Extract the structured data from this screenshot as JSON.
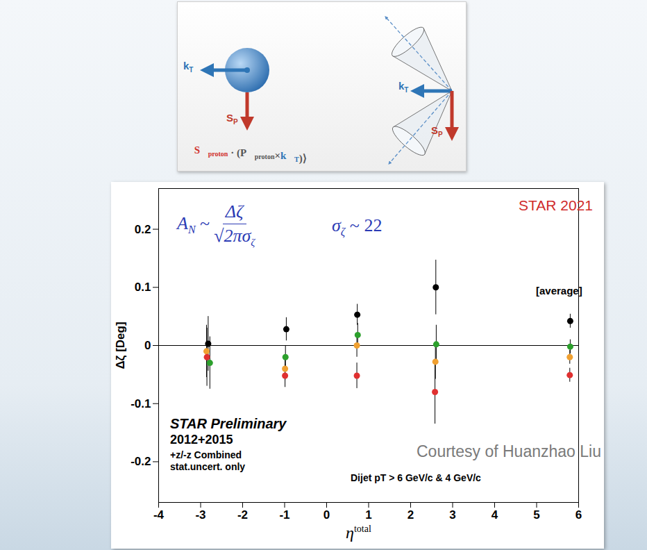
{
  "diagram": {
    "left": {
      "kT": {
        "text": "k",
        "sub": "T"
      },
      "Sp": {
        "text": "S",
        "sub": "P"
      }
    },
    "right": {
      "kT": {
        "text": "k",
        "sub": "T"
      },
      "Sp": {
        "text": "S",
        "sub": "P"
      }
    },
    "correlator": [
      {
        "text": "⟨"
      },
      {
        "text": "S⃗",
        "sub": "proton",
        "color": "#d0312d"
      },
      {
        "text": " · ("
      },
      {
        "text": "P⃗",
        "sub": "proton",
        "color": "#555555"
      },
      {
        "text": "×"
      },
      {
        "text": "k⃗",
        "sub": "T",
        "color": "#2e75b6"
      },
      {
        "text": ")⟩"
      }
    ]
  },
  "chart_data": {
    "type": "scatter",
    "x_label": {
      "text": "η",
      "sup": "total"
    },
    "y_label": "Δζ [Deg]",
    "xlim": [
      -4,
      6
    ],
    "xticks": [
      -4,
      -3,
      -2,
      -1,
      0,
      1,
      2,
      3,
      4,
      5,
      6
    ],
    "ylim": [
      -0.27,
      0.27
    ],
    "yticks": [
      -0.2,
      -0.1,
      0,
      0.1,
      0.2
    ],
    "grid": false,
    "hline": 0,
    "marker": "circle",
    "series": [
      {
        "color": "#000000",
        "x": [
          -2.82,
          -0.96,
          0.73,
          2.6,
          5.8
        ],
        "values": [
          0.003,
          0.028,
          0.053,
          0.1,
          0.042
        ],
        "errors": [
          0.047,
          0.02,
          0.018,
          0.047,
          0.012
        ]
      },
      {
        "color": "#2ca02c",
        "x": [
          -2.78,
          -0.98,
          0.74,
          2.61,
          5.8
        ],
        "values": [
          -0.03,
          -0.02,
          0.018,
          0.002,
          -0.002
        ],
        "errors": [
          0.045,
          0.02,
          0.02,
          0.033,
          0.012
        ]
      },
      {
        "color": "#f0a030",
        "x": [
          -2.86,
          -0.99,
          0.72,
          2.59,
          5.79
        ],
        "values": [
          -0.01,
          -0.04,
          0.0,
          -0.028,
          -0.02
        ],
        "errors": [
          0.045,
          0.02,
          0.02,
          0.03,
          0.012
        ]
      },
      {
        "color": "#e03030",
        "x": [
          -2.85,
          -0.99,
          0.72,
          2.58,
          5.79
        ],
        "values": [
          -0.02,
          -0.052,
          -0.052,
          -0.08,
          -0.051
        ],
        "errors": [
          0.05,
          0.02,
          0.022,
          0.055,
          0.012
        ]
      }
    ],
    "annotations": {
      "formula": {
        "left": "A",
        "left_sub": "N",
        "relation": "~",
        "numerator": "Δζ",
        "denominator": "√2πσ",
        "denominator_sub": "ζ"
      },
      "sigma": {
        "text": "σ",
        "sub": "ζ",
        "relation": "~",
        "value": 22
      },
      "experiment": "STAR 2021",
      "average": "[average]",
      "preliminary": "STAR Preliminary",
      "years": "2012+2015",
      "combined": "+z/-z Combined",
      "uncert": "stat.uncert. only",
      "courtesy": "Courtesy of Huanzhao Liu",
      "cuts": "Dijet pT > 6 GeV/c & 4 GeV/c"
    }
  }
}
